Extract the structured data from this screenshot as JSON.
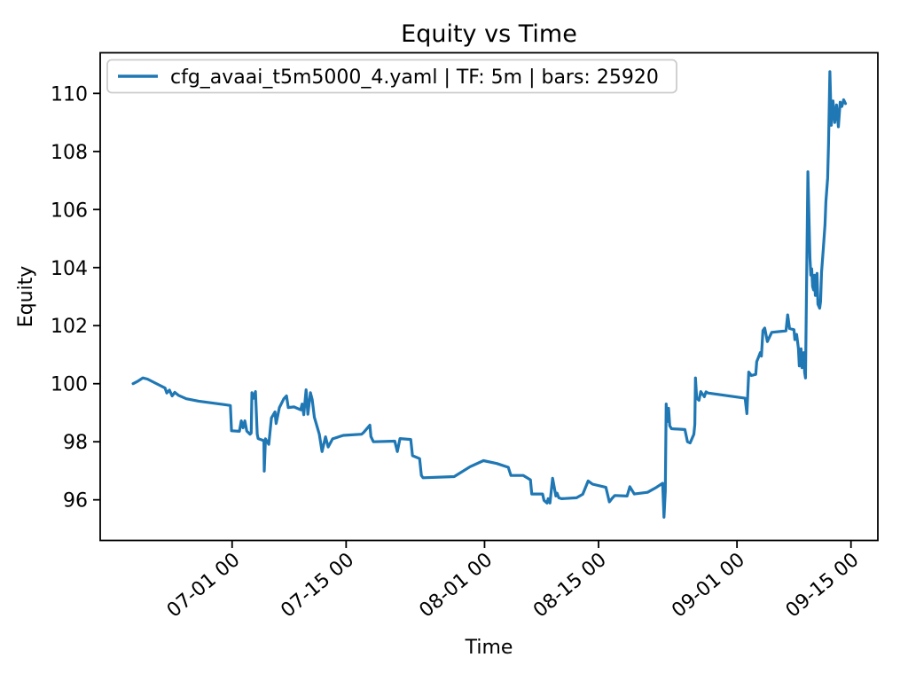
{
  "chart_data": {
    "type": "line",
    "title": "Equity vs Time",
    "xlabel": "Time",
    "ylabel": "Equity",
    "series_name": "cfg_avaai_t5m5000_4.yaml | TF: 5m | bars: 25920",
    "line_color": "#1f77b4",
    "axis_color": "#000000",
    "legend_edge_color": "#cccccc",
    "background_color": "#ffffff",
    "grid": false,
    "legend_position": "upper-left",
    "x_unit": "days since 06-15 00:00",
    "xlim": [
      -0.2,
      95.3
    ],
    "ylim": [
      94.6,
      111.4
    ],
    "x_ticks": [
      {
        "pos": 16,
        "label": "07-01 00"
      },
      {
        "pos": 30,
        "label": "07-15 00"
      },
      {
        "pos": 47,
        "label": "08-01 00"
      },
      {
        "pos": 61,
        "label": "08-15 00"
      },
      {
        "pos": 78,
        "label": "09-01 00"
      },
      {
        "pos": 92,
        "label": "09-15 00"
      }
    ],
    "y_ticks": [
      96,
      98,
      100,
      102,
      104,
      106,
      108,
      110
    ],
    "points": [
      [
        3.84,
        100.0
      ],
      [
        4.4,
        100.08
      ],
      [
        5.04,
        100.2
      ],
      [
        5.6,
        100.16
      ],
      [
        7.0,
        99.96
      ],
      [
        7.76,
        99.85
      ],
      [
        7.98,
        99.68
      ],
      [
        8.3,
        99.78
      ],
      [
        8.63,
        99.58
      ],
      [
        8.96,
        99.7
      ],
      [
        9.4,
        99.6
      ],
      [
        10.37,
        99.48
      ],
      [
        11.9,
        99.4
      ],
      [
        15.06,
        99.28
      ],
      [
        15.79,
        99.25
      ],
      [
        15.93,
        98.38
      ],
      [
        16.9,
        98.36
      ],
      [
        17.12,
        98.72
      ],
      [
        17.34,
        98.48
      ],
      [
        17.56,
        98.72
      ],
      [
        17.8,
        98.37
      ],
      [
        18.2,
        98.26
      ],
      [
        18.35,
        98.3
      ],
      [
        18.43,
        99.69
      ],
      [
        18.65,
        99.5
      ],
      [
        18.87,
        99.73
      ],
      [
        19.08,
        98.26
      ],
      [
        19.19,
        98.11
      ],
      [
        19.8,
        98.05
      ],
      [
        19.9,
        98.0
      ],
      [
        19.95,
        96.99
      ],
      [
        20.1,
        98.1
      ],
      [
        20.5,
        97.91
      ],
      [
        20.83,
        98.82
      ],
      [
        21.26,
        99.03
      ],
      [
        21.4,
        98.63
      ],
      [
        21.81,
        99.18
      ],
      [
        22.35,
        99.48
      ],
      [
        22.68,
        99.58
      ],
      [
        22.9,
        99.18
      ],
      [
        23.6,
        99.2
      ],
      [
        24.42,
        99.1
      ],
      [
        24.6,
        99.3
      ],
      [
        24.8,
        98.93
      ],
      [
        25.08,
        99.79
      ],
      [
        25.3,
        98.95
      ],
      [
        25.62,
        99.69
      ],
      [
        25.84,
        99.45
      ],
      [
        26.1,
        98.85
      ],
      [
        26.71,
        98.26
      ],
      [
        27.04,
        97.66
      ],
      [
        27.47,
        98.17
      ],
      [
        27.8,
        97.82
      ],
      [
        28.34,
        98.1
      ],
      [
        29.65,
        98.22
      ],
      [
        31.9,
        98.26
      ],
      [
        32.15,
        98.32
      ],
      [
        32.92,
        98.57
      ],
      [
        33.05,
        98.18
      ],
      [
        33.35,
        98.0
      ],
      [
        35.97,
        98.02
      ],
      [
        36.29,
        97.66
      ],
      [
        36.62,
        98.11
      ],
      [
        37.93,
        98.08
      ],
      [
        38.15,
        97.52
      ],
      [
        39.02,
        97.42
      ],
      [
        39.24,
        96.84
      ],
      [
        39.45,
        96.76
      ],
      [
        43.27,
        96.8
      ],
      [
        45.23,
        97.14
      ],
      [
        46.86,
        97.35
      ],
      [
        48.5,
        97.25
      ],
      [
        49.91,
        97.12
      ],
      [
        50.24,
        96.84
      ],
      [
        51.76,
        96.84
      ],
      [
        52.63,
        96.69
      ],
      [
        52.8,
        96.2
      ],
      [
        54.13,
        96.2
      ],
      [
        54.3,
        95.98
      ],
      [
        54.67,
        95.89
      ],
      [
        54.81,
        96.04
      ],
      [
        55.03,
        95.89
      ],
      [
        55.36,
        96.74
      ],
      [
        55.76,
        96.13
      ],
      [
        55.9,
        96.23
      ],
      [
        56.12,
        96.07
      ],
      [
        56.45,
        96.04
      ],
      [
        58.3,
        96.07
      ],
      [
        59.06,
        96.19
      ],
      [
        59.72,
        96.65
      ],
      [
        60.26,
        96.54
      ],
      [
        61.9,
        96.43
      ],
      [
        62.33,
        95.93
      ],
      [
        62.66,
        96.05
      ],
      [
        62.99,
        96.15
      ],
      [
        64.51,
        96.13
      ],
      [
        64.84,
        96.45
      ],
      [
        65.39,
        96.2
      ],
      [
        67.02,
        96.26
      ],
      [
        68.11,
        96.43
      ],
      [
        68.87,
        96.57
      ],
      [
        69.04,
        95.4
      ],
      [
        69.2,
        96.3
      ],
      [
        69.31,
        99.3
      ],
      [
        69.45,
        98.7
      ],
      [
        69.6,
        99.15
      ],
      [
        69.74,
        98.55
      ],
      [
        69.96,
        98.45
      ],
      [
        71.6,
        98.42
      ],
      [
        71.92,
        98.0
      ],
      [
        72.25,
        97.96
      ],
      [
        72.7,
        98.26
      ],
      [
        72.82,
        98.6
      ],
      [
        72.9,
        100.2
      ],
      [
        73.05,
        99.5
      ],
      [
        73.34,
        99.43
      ],
      [
        73.55,
        99.73
      ],
      [
        73.99,
        99.55
      ],
      [
        74.2,
        99.72
      ],
      [
        74.43,
        99.68
      ],
      [
        79.0,
        99.5
      ],
      [
        79.22,
        98.97
      ],
      [
        79.44,
        100.4
      ],
      [
        79.77,
        100.28
      ],
      [
        80.31,
        100.32
      ],
      [
        80.42,
        100.76
      ],
      [
        80.64,
        100.91
      ],
      [
        80.86,
        101.07
      ],
      [
        81.0,
        100.95
      ],
      [
        81.19,
        101.83
      ],
      [
        81.4,
        101.92
      ],
      [
        81.73,
        101.45
      ],
      [
        82.27,
        101.77
      ],
      [
        84.02,
        101.82
      ],
      [
        84.23,
        102.37
      ],
      [
        84.45,
        101.9
      ],
      [
        85.0,
        101.86
      ],
      [
        85.11,
        101.52
      ],
      [
        85.32,
        101.7
      ],
      [
        85.54,
        101.22
      ],
      [
        85.65,
        100.61
      ],
      [
        85.87,
        101.2
      ],
      [
        85.98,
        100.55
      ],
      [
        86.2,
        101.07
      ],
      [
        86.3,
        100.4
      ],
      [
        86.41,
        100.2
      ],
      [
        86.71,
        107.3
      ],
      [
        86.96,
        104.35
      ],
      [
        87.07,
        103.74
      ],
      [
        87.18,
        103.96
      ],
      [
        87.29,
        103.35
      ],
      [
        87.4,
        103.23
      ],
      [
        87.51,
        103.74
      ],
      [
        87.62,
        103.04
      ],
      [
        87.72,
        103.38
      ],
      [
        87.83,
        103.8
      ],
      [
        87.94,
        102.74
      ],
      [
        88.16,
        102.6
      ],
      [
        88.27,
        102.83
      ],
      [
        88.38,
        103.84
      ],
      [
        88.6,
        104.66
      ],
      [
        88.81,
        105.48
      ],
      [
        88.92,
        106.27
      ],
      [
        89.14,
        107.09
      ],
      [
        89.25,
        108.3
      ],
      [
        89.41,
        110.75
      ],
      [
        89.58,
        108.9
      ],
      [
        89.79,
        109.74
      ],
      [
        90.01,
        109.0
      ],
      [
        90.23,
        109.6
      ],
      [
        90.34,
        109.2
      ],
      [
        90.45,
        108.85
      ],
      [
        90.67,
        109.7
      ],
      [
        90.88,
        109.55
      ],
      [
        91.1,
        109.78
      ],
      [
        91.32,
        109.65
      ]
    ]
  }
}
